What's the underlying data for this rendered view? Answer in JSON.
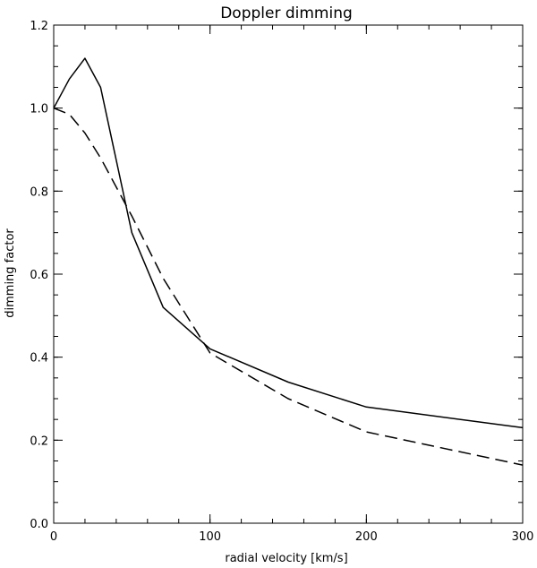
{
  "chart_data": {
    "type": "line",
    "title": "Doppler dimming",
    "xlabel": "radial velocity [km/s]",
    "ylabel": "dimming factor",
    "xlim": [
      0,
      300
    ],
    "ylim": [
      0.0,
      1.2
    ],
    "x_ticks": [
      0,
      100,
      200,
      300
    ],
    "x_tick_labels": [
      "0",
      "100",
      "200",
      "300"
    ],
    "y_ticks": [
      0.0,
      0.2,
      0.4,
      0.6,
      0.8,
      1.0,
      1.2
    ],
    "y_tick_labels": [
      "0.0",
      "0.2",
      "0.4",
      "0.6",
      "0.8",
      "1.0",
      "1.2"
    ],
    "x_minor_step": 20,
    "y_minor_step": 0.05,
    "grid": false,
    "legend": "none",
    "series": [
      {
        "style": "solid",
        "color": "#000000",
        "x": [
          0,
          10,
          20,
          30,
          50,
          70,
          100,
          150,
          200,
          300
        ],
        "y": [
          1.0,
          1.07,
          1.12,
          1.05,
          0.7,
          0.52,
          0.42,
          0.34,
          0.28,
          0.23
        ]
      },
      {
        "style": "dashed",
        "color": "#000000",
        "x": [
          0,
          10,
          20,
          30,
          50,
          70,
          100,
          150,
          200,
          300
        ],
        "y": [
          1.0,
          0.985,
          0.94,
          0.88,
          0.74,
          0.59,
          0.41,
          0.3,
          0.22,
          0.14
        ]
      }
    ]
  }
}
